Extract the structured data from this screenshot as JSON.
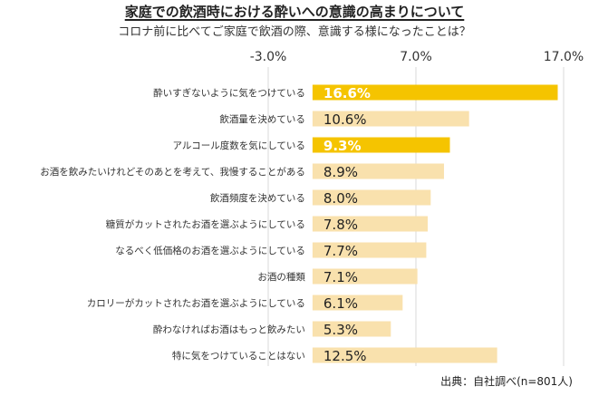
{
  "title": "家庭での飲酒時における酔いへの意識の高まりについて",
  "subtitle": "コロナ前に比べてご家庭で飲酒の際、意識する様になったことは？",
  "source": "出典：自社調べ(n=801人)",
  "colors": {
    "highlight": "#f5c400",
    "normal": "#f9e1ad",
    "grid": "#d9d9d9"
  },
  "chart_data": {
    "type": "bar",
    "orientation": "horizontal",
    "title": "家庭での飲酒時における酔いへの意識の高まりについて",
    "subtitle": "コロナ前に比べてご家庭で飲酒の際、意識する様になったことは？",
    "xlim": [
      -3.0,
      17.0
    ],
    "xticks": [
      "-3.0%",
      "7.0%",
      "17.0%"
    ],
    "xtick_values": [
      -3.0,
      7.0,
      17.0
    ],
    "x_axis_position": "top",
    "grid": true,
    "categories": [
      "酔いすぎないように気をつけている",
      "飲酒量を決めている",
      "アルコール度数を気にしている",
      "お酒を飲みたいけれどそのあとを考えて、我慢することがある",
      "飲酒頻度を決めている",
      "糖質がカットされたお酒を選ぶようにしている",
      "なるべく低価格のお酒を選ぶようにしている",
      "お酒の種類",
      "カロリーがカットされたお酒を選ぶようにしている",
      "酔わなければお酒はもっと飲みたい",
      "特に気をつけていることはない"
    ],
    "values": [
      16.6,
      10.6,
      9.3,
      8.9,
      8.0,
      7.8,
      7.7,
      7.1,
      6.1,
      5.3,
      12.5
    ],
    "labels": [
      "16.6%",
      "10.6%",
      "9.3%",
      "8.9%",
      "8.0%",
      "7.8%",
      "7.7%",
      "7.1%",
      "6.1%",
      "5.3%",
      "12.5%"
    ],
    "highlighted": [
      true,
      false,
      true,
      false,
      false,
      false,
      false,
      false,
      false,
      false,
      false
    ]
  }
}
